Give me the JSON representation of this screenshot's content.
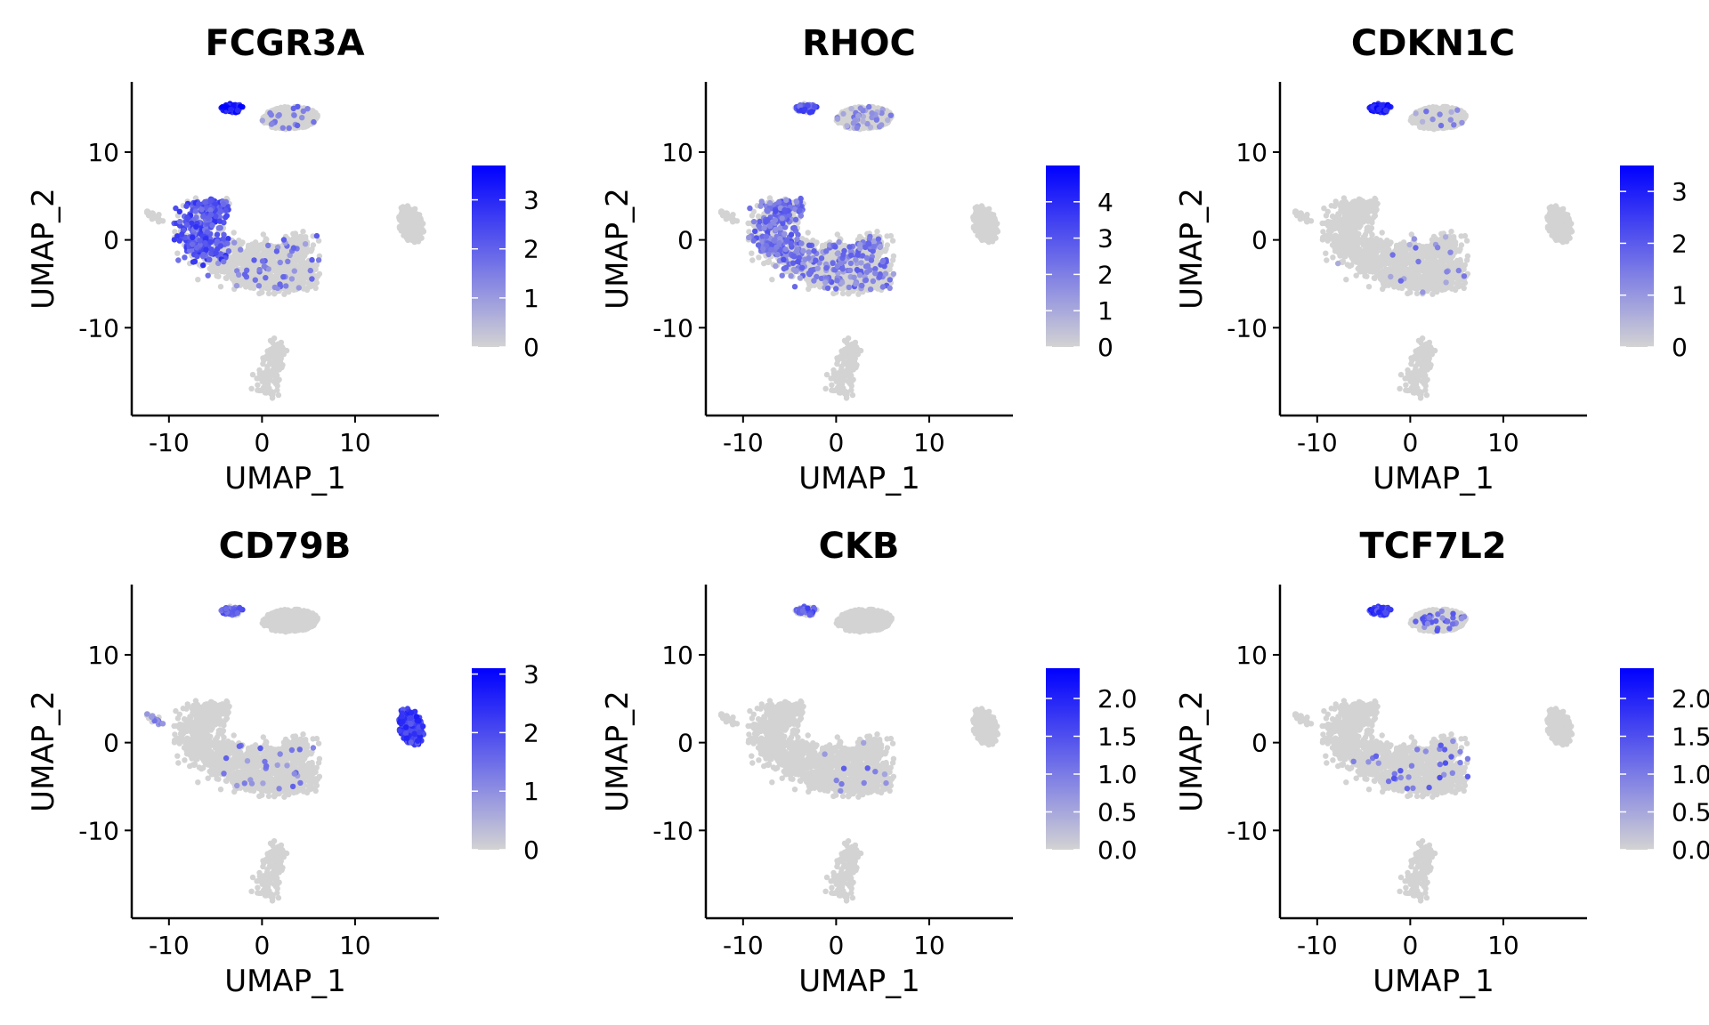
{
  "figure": {
    "background": "#ffffff",
    "low_color": "#d3d3d3",
    "high_color": "#0000ff"
  },
  "chart_data": [
    {
      "type": "scatter",
      "title": "FCGR3A",
      "xlabel": "UMAP_1",
      "ylabel": "UMAP_2",
      "xlim": [
        -14,
        19
      ],
      "ylim": [
        -20,
        18
      ],
      "xticks": [
        -10,
        0,
        10
      ],
      "xtick_labels": [
        "-10",
        "0",
        "10"
      ],
      "yticks": [
        -10,
        0,
        10
      ],
      "ytick_labels": [
        "-10",
        "0",
        "10"
      ],
      "colorbar": {
        "min": 0,
        "max": 3.7,
        "ticks": [
          0,
          1,
          2,
          3
        ],
        "tick_labels": [
          "0",
          "1",
          "2",
          "3"
        ]
      },
      "expression_regions": [
        {
          "cluster": "top-left",
          "level": 0.85,
          "fraction": 0.95
        },
        {
          "cluster": "left-arm",
          "level": 0.6,
          "fraction": 0.55
        },
        {
          "cluster": "main-body",
          "level": 0.4,
          "fraction": 0.04
        },
        {
          "cluster": "top-right",
          "level": 0.4,
          "fraction": 0.03
        }
      ]
    },
    {
      "type": "scatter",
      "title": "RHOC",
      "xlabel": "UMAP_1",
      "ylabel": "UMAP_2",
      "xlim": [
        -14,
        19
      ],
      "ylim": [
        -20,
        18
      ],
      "xticks": [
        -10,
        0,
        10
      ],
      "xtick_labels": [
        "-10",
        "0",
        "10"
      ],
      "yticks": [
        -10,
        0,
        10
      ],
      "ytick_labels": [
        "-10",
        "0",
        "10"
      ],
      "colorbar": {
        "min": 0,
        "max": 5.0,
        "ticks": [
          0,
          1,
          2,
          3,
          4
        ],
        "tick_labels": [
          "0",
          "1",
          "2",
          "3",
          "4"
        ]
      },
      "expression_regions": [
        {
          "cluster": "top-left",
          "level": 0.6,
          "fraction": 0.7
        },
        {
          "cluster": "left-arm",
          "level": 0.45,
          "fraction": 0.45
        },
        {
          "cluster": "main-body",
          "level": 0.4,
          "fraction": 0.2
        },
        {
          "cluster": "top-right",
          "level": 0.3,
          "fraction": 0.1
        }
      ]
    },
    {
      "type": "scatter",
      "title": "CDKN1C",
      "xlabel": "UMAP_1",
      "ylabel": "UMAP_2",
      "xlim": [
        -14,
        19
      ],
      "ylim": [
        -20,
        18
      ],
      "xticks": [
        -10,
        0,
        10
      ],
      "xtick_labels": [
        "-10",
        "0",
        "10"
      ],
      "yticks": [
        -10,
        0,
        10
      ],
      "ytick_labels": [
        "-10",
        "0",
        "10"
      ],
      "colorbar": {
        "min": 0,
        "max": 3.5,
        "ticks": [
          0,
          1,
          2,
          3
        ],
        "tick_labels": [
          "0",
          "1",
          "2",
          "3"
        ]
      },
      "expression_regions": [
        {
          "cluster": "top-left",
          "level": 0.9,
          "fraction": 0.95
        },
        {
          "cluster": "main-body",
          "level": 0.35,
          "fraction": 0.02
        },
        {
          "cluster": "top-right",
          "level": 0.3,
          "fraction": 0.03
        }
      ]
    },
    {
      "type": "scatter",
      "title": "CD79B",
      "xlabel": "UMAP_1",
      "ylabel": "UMAP_2",
      "xlim": [
        -14,
        19
      ],
      "ylim": [
        -20,
        18
      ],
      "xticks": [
        -10,
        0,
        10
      ],
      "xtick_labels": [
        "-10",
        "0",
        "10"
      ],
      "yticks": [
        -10,
        0,
        10
      ],
      "ytick_labels": [
        "-10",
        "0",
        "10"
      ],
      "colorbar": {
        "min": 0,
        "max": 3.1,
        "ticks": [
          0,
          1,
          2,
          3
        ],
        "tick_labels": [
          "0",
          "1",
          "2",
          "3"
        ]
      },
      "expression_regions": [
        {
          "cluster": "right",
          "level": 0.7,
          "fraction": 0.9
        },
        {
          "cluster": "top-left",
          "level": 0.5,
          "fraction": 0.6
        },
        {
          "cluster": "left-dots",
          "level": 0.4,
          "fraction": 0.5
        },
        {
          "cluster": "main-body",
          "level": 0.4,
          "fraction": 0.02
        }
      ]
    },
    {
      "type": "scatter",
      "title": "CKB",
      "xlabel": "UMAP_1",
      "ylabel": "UMAP_2",
      "xlim": [
        -14,
        19
      ],
      "ylim": [
        -20,
        18
      ],
      "xticks": [
        -10,
        0,
        10
      ],
      "xtick_labels": [
        "-10",
        "0",
        "10"
      ],
      "yticks": [
        -10,
        0,
        10
      ],
      "ytick_labels": [
        "-10",
        "0",
        "10"
      ],
      "colorbar": {
        "min": 0,
        "max": 2.4,
        "ticks": [
          0,
          0.5,
          1.0,
          1.5,
          2.0
        ],
        "tick_labels": [
          "0.0",
          "0.5",
          "1.0",
          "1.5",
          "2.0"
        ]
      },
      "expression_regions": [
        {
          "cluster": "top-left",
          "level": 0.55,
          "fraction": 0.55
        },
        {
          "cluster": "main-body",
          "level": 0.4,
          "fraction": 0.01
        }
      ]
    },
    {
      "type": "scatter",
      "title": "TCF7L2",
      "xlabel": "UMAP_1",
      "ylabel": "UMAP_2",
      "xlim": [
        -14,
        19
      ],
      "ylim": [
        -20,
        18
      ],
      "xticks": [
        -10,
        0,
        10
      ],
      "xtick_labels": [
        "-10",
        "0",
        "10"
      ],
      "yticks": [
        -10,
        0,
        10
      ],
      "ytick_labels": [
        "-10",
        "0",
        "10"
      ],
      "colorbar": {
        "min": 0,
        "max": 2.4,
        "ticks": [
          0,
          0.5,
          1.0,
          1.5,
          2.0
        ],
        "tick_labels": [
          "0.0",
          "0.5",
          "1.0",
          "1.5",
          "2.0"
        ]
      },
      "expression_regions": [
        {
          "cluster": "top-left",
          "level": 0.7,
          "fraction": 0.85
        },
        {
          "cluster": "top-right",
          "level": 0.45,
          "fraction": 0.1
        },
        {
          "cluster": "main-body",
          "level": 0.45,
          "fraction": 0.04
        }
      ]
    }
  ]
}
